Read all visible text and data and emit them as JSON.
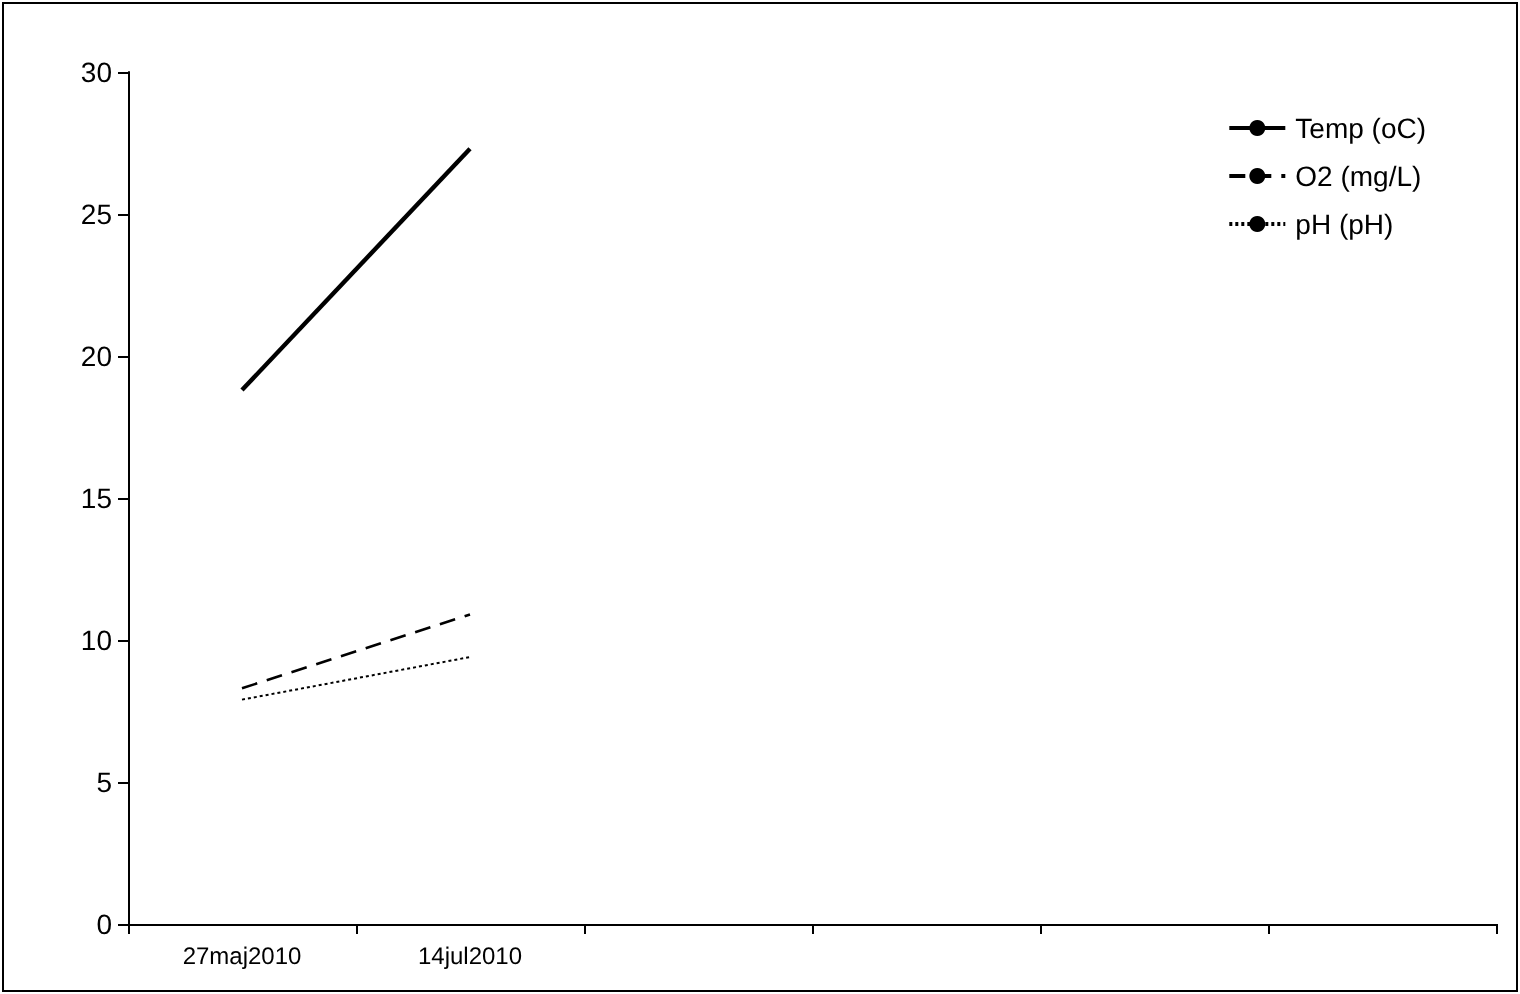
{
  "chart_data": {
    "type": "line",
    "categories": [
      "27maj2010",
      "14jul2010",
      null,
      null,
      null,
      null
    ],
    "series": [
      {
        "name": "Temp (oC)",
        "color": "#000000",
        "line_style": "solid",
        "values": [
          18.8,
          27.3,
          null,
          null,
          null,
          null
        ]
      },
      {
        "name": "O2 (mg/L)",
        "color": "#000000",
        "line_style": "dashed",
        "values": [
          8.3,
          10.9,
          null,
          null,
          null,
          null
        ]
      },
      {
        "name": "pH (pH)",
        "color": "#000000",
        "line_style": "dotted",
        "values": [
          7.9,
          9.4,
          null,
          null,
          null,
          null
        ]
      }
    ],
    "ylim": [
      0,
      30
    ],
    "yticks": [
      0,
      5,
      10,
      15,
      20,
      25,
      30
    ],
    "grid": false,
    "legend": "top right",
    "marker": "none"
  }
}
